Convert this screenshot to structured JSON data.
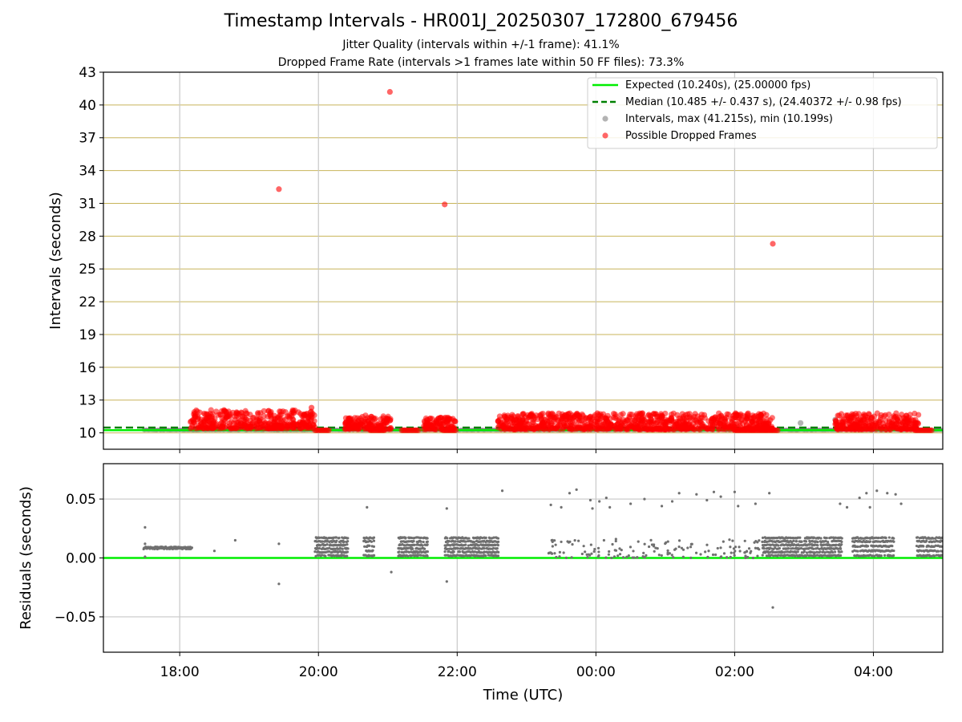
{
  "title": "Timestamp Intervals - HR001J_20250307_172800_679456",
  "subtitle_1": "Jitter Quality (intervals within +/-1 frame): 41.1%",
  "subtitle_2": "Dropped Frame Rate (intervals >1 frames late within 50 FF files): 73.3%",
  "colors": {
    "expected": "#00ee00",
    "median": "#008000",
    "intervals": "#808080",
    "dropped": "#ff0000",
    "hgrid": "#c8b45a",
    "vgrid": "#c8c8c8"
  },
  "chart_data": [
    {
      "type": "scatter",
      "ylabel": "Intervals (seconds)",
      "x_unit": "hours_after_midnight_UTC_2025-03-07",
      "xlim": [
        16.9,
        29.0
      ],
      "ylim": [
        8.5,
        43
      ],
      "yticks": [
        "10",
        "13",
        "16",
        "19",
        "22",
        "25",
        "28",
        "31",
        "34",
        "37",
        "40",
        "43"
      ],
      "grid": true,
      "legend_position": "top-right",
      "legend": [
        "Expected (10.240s), (25.00000 fps)",
        "Median (10.485 +/- 0.437 s), (24.40372 +/- 0.98 fps)",
        "Intervals, max (41.215s), min (10.199s)",
        "Possible Dropped Frames"
      ],
      "expected_interval": 10.24,
      "median_interval": 10.485,
      "dropped_outliers": [
        {
          "x": 19.43,
          "y": 32.3
        },
        {
          "x": 21.03,
          "y": 41.2
        },
        {
          "x": 21.82,
          "y": 30.9
        },
        {
          "x": 26.55,
          "y": 27.3
        },
        {
          "x": 24.02,
          "y": 11.8
        },
        {
          "x": 19.9,
          "y": 12.3
        }
      ],
      "interval_outliers": [
        {
          "x": 26.95,
          "y": 10.9
        },
        {
          "x": 27.45,
          "y": 11.2
        }
      ],
      "dropped_clusters": [
        {
          "x_start": 18.15,
          "x_end": 19.95,
          "y_low": 10.4,
          "y_high": 12.1
        },
        {
          "x_start": 20.38,
          "x_end": 21.05,
          "y_low": 10.3,
          "y_high": 11.6
        },
        {
          "x_start": 21.52,
          "x_end": 21.98,
          "y_low": 10.3,
          "y_high": 11.4
        },
        {
          "x_start": 22.58,
          "x_end": 26.55,
          "y_low": 10.3,
          "y_high": 11.8
        },
        {
          "x_start": 27.45,
          "x_end": 28.65,
          "y_low": 10.3,
          "y_high": 11.8
        }
      ],
      "baseline_dropped_segments": [
        {
          "x_start": 19.95,
          "x_end": 20.15,
          "y": 10.24
        },
        {
          "x_start": 20.75,
          "x_end": 20.95,
          "y": 10.24
        },
        {
          "x_start": 21.2,
          "x_end": 21.45,
          "y": 10.24
        },
        {
          "x_start": 21.8,
          "x_end": 21.98,
          "y": 10.24
        },
        {
          "x_start": 26.0,
          "x_end": 26.62,
          "y": 10.24
        },
        {
          "x_start": 28.6,
          "x_end": 28.85,
          "y": 10.24
        }
      ]
    },
    {
      "type": "scatter",
      "ylabel": "Residuals (seconds)",
      "xlabel": "Time (UTC)",
      "xlim": [
        16.9,
        29.0
      ],
      "ylim": [
        -0.08,
        0.08
      ],
      "yticks": [
        "−0.05",
        "0.00",
        "0.05"
      ],
      "ytick_values": [
        -0.05,
        0.0,
        0.05
      ],
      "xticks": [
        "18:00",
        "20:00",
        "22:00",
        "00:00",
        "02:00",
        "04:00"
      ],
      "xtick_values": [
        18,
        20,
        22,
        24,
        26,
        28
      ],
      "grid": true,
      "zero_line": 0.0,
      "residual_band": {
        "x_start": 17.48,
        "x_end": 18.18,
        "y": 0.0085
      },
      "residual_clusters": [
        {
          "x_start": 19.95,
          "x_end": 20.42,
          "levels": [
            0.002,
            0.005,
            0.008,
            0.011,
            0.014,
            0.017
          ]
        },
        {
          "x_start": 20.65,
          "x_end": 20.8,
          "levels": [
            0.002,
            0.006,
            0.01,
            0.014,
            0.017
          ]
        },
        {
          "x_start": 21.15,
          "x_end": 21.58,
          "levels": [
            0.002,
            0.005,
            0.008,
            0.011,
            0.014,
            0.017
          ]
        },
        {
          "x_start": 21.82,
          "x_end": 22.6,
          "levels": [
            0.002,
            0.005,
            0.008,
            0.011,
            0.014,
            0.017
          ]
        },
        {
          "x_start": 26.4,
          "x_end": 27.55,
          "levels": [
            0.002,
            0.005,
            0.008,
            0.011,
            0.014,
            0.017
          ]
        },
        {
          "x_start": 27.7,
          "x_end": 28.3,
          "levels": [
            0.002,
            0.006,
            0.01,
            0.014,
            0.017
          ]
        },
        {
          "x_start": 28.62,
          "x_end": 29.0,
          "levels": [
            0.002,
            0.006,
            0.01,
            0.014,
            0.017
          ]
        }
      ],
      "residual_sparse_range": {
        "x_start": 23.3,
        "x_end": 26.4,
        "count": 150,
        "y_min": 0.0,
        "y_max": 0.017
      },
      "residual_outliers": [
        {
          "x": 17.5,
          "y": 0.026
        },
        {
          "x": 17.5,
          "y": 0.012
        },
        {
          "x": 17.5,
          "y": 0.001
        },
        {
          "x": 18.5,
          "y": 0.006
        },
        {
          "x": 18.8,
          "y": 0.015
        },
        {
          "x": 19.43,
          "y": 0.012
        },
        {
          "x": 19.43,
          "y": -0.022
        },
        {
          "x": 20.7,
          "y": 0.043
        },
        {
          "x": 21.05,
          "y": -0.012
        },
        {
          "x": 21.85,
          "y": 0.042
        },
        {
          "x": 21.85,
          "y": -0.02
        },
        {
          "x": 22.65,
          "y": 0.057
        },
        {
          "x": 23.35,
          "y": 0.045
        },
        {
          "x": 23.5,
          "y": 0.043
        },
        {
          "x": 23.62,
          "y": 0.055
        },
        {
          "x": 23.72,
          "y": 0.058
        },
        {
          "x": 23.92,
          "y": 0.049
        },
        {
          "x": 23.95,
          "y": 0.042
        },
        {
          "x": 24.05,
          "y": 0.048
        },
        {
          "x": 24.15,
          "y": 0.051
        },
        {
          "x": 24.2,
          "y": 0.043
        },
        {
          "x": 24.5,
          "y": 0.046
        },
        {
          "x": 24.7,
          "y": 0.05
        },
        {
          "x": 24.95,
          "y": 0.044
        },
        {
          "x": 25.1,
          "y": 0.048
        },
        {
          "x": 25.2,
          "y": 0.055
        },
        {
          "x": 25.45,
          "y": 0.054
        },
        {
          "x": 25.6,
          "y": 0.049
        },
        {
          "x": 25.7,
          "y": 0.056
        },
        {
          "x": 25.8,
          "y": 0.052
        },
        {
          "x": 26.0,
          "y": 0.056
        },
        {
          "x": 26.05,
          "y": 0.044
        },
        {
          "x": 26.3,
          "y": 0.046
        },
        {
          "x": 26.5,
          "y": 0.055
        },
        {
          "x": 26.55,
          "y": -0.042
        },
        {
          "x": 27.52,
          "y": 0.046
        },
        {
          "x": 27.62,
          "y": 0.043
        },
        {
          "x": 27.8,
          "y": 0.051
        },
        {
          "x": 27.9,
          "y": 0.055
        },
        {
          "x": 27.95,
          "y": 0.043
        },
        {
          "x": 28.05,
          "y": 0.057
        },
        {
          "x": 28.2,
          "y": 0.055
        },
        {
          "x": 28.32,
          "y": 0.054
        },
        {
          "x": 28.4,
          "y": 0.046
        }
      ]
    }
  ]
}
